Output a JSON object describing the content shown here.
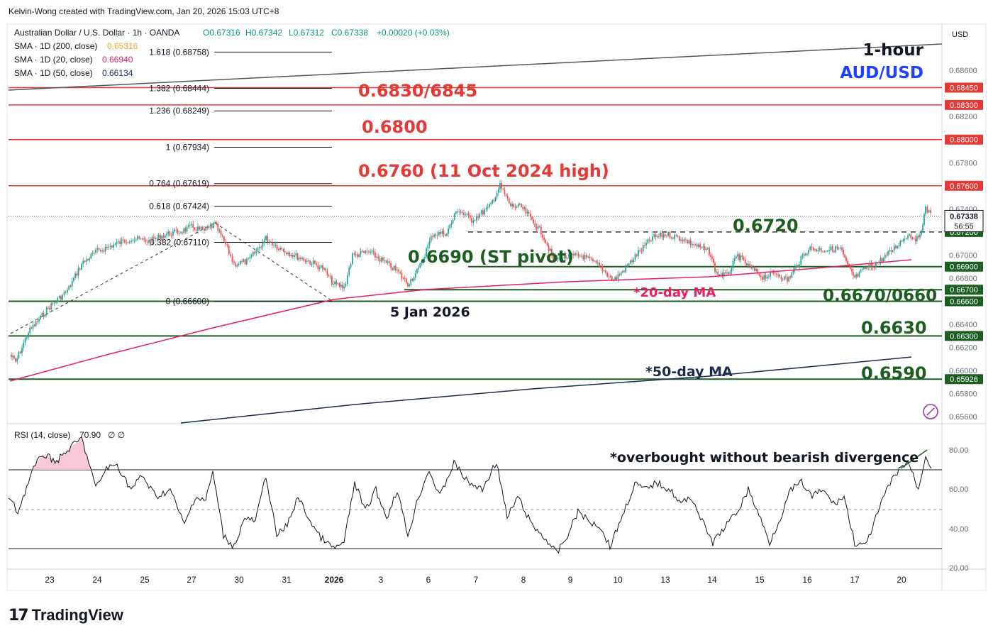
{
  "header": {
    "credit": "Kelvin-Wong created with TradingView.com, Jan 20, 2026 15:03 UTC+8"
  },
  "legend": {
    "symbol": "Australian Dollar / U.S. Dollar · 1h · OANDA",
    "ohlc": {
      "o": "O0.67316",
      "h": "H0.67342",
      "l": "L0.67312",
      "c": "C0.67338",
      "chg": "+0.00020 (+0.03%)"
    },
    "sma200": {
      "label": "SMA · 1D (200, close)",
      "value": "0.65316",
      "color": "#f5a623"
    },
    "sma20": {
      "label": "SMA · 1D (20, close)",
      "value": "0.66940",
      "color": "#e91e63"
    },
    "sma50": {
      "label": "SMA · 1D (50, close)",
      "value": "0.66134",
      "color": "#1a2b4c"
    }
  },
  "price_axis": {
    "currency": "USD",
    "ticks": [
      "0.68600",
      "0.68200",
      "0.67800",
      "0.67400",
      "0.67000",
      "0.66800",
      "0.66400",
      "0.66200",
      "0.66000",
      "0.65800",
      "0.65600"
    ],
    "tags": [
      {
        "label": "0.68450",
        "value": 0.6845,
        "color": "#e53935"
      },
      {
        "label": "0.68300",
        "value": 0.683,
        "color": "#e53935"
      },
      {
        "label": "0.68000",
        "value": 0.68,
        "color": "#e53935"
      },
      {
        "label": "0.67600",
        "value": 0.676,
        "color": "#e53935"
      },
      {
        "label": "0.67200",
        "value": 0.672,
        "color": "#1b5e20"
      },
      {
        "label": "0.66900",
        "value": 0.669,
        "color": "#1b5e20"
      },
      {
        "label": "0.66700",
        "value": 0.667,
        "color": "#1b5e20"
      },
      {
        "label": "0.66600",
        "value": 0.666,
        "color": "#1b5e20"
      },
      {
        "label": "0.66300",
        "value": 0.663,
        "color": "#1b5e20"
      },
      {
        "label": "0.65926",
        "value": 0.65926,
        "color": "#1b5e20"
      }
    ],
    "last": {
      "price": "0.67338",
      "countdown": "56:55",
      "value": 0.67338
    }
  },
  "time_axis": {
    "labels": [
      "23",
      "24",
      "25",
      "27",
      "30",
      "31",
      "2026",
      "3",
      "6",
      "7",
      "8",
      "9",
      "10",
      "13",
      "14",
      "15",
      "16",
      "17",
      "20"
    ]
  },
  "fib": {
    "levels": [
      {
        "label": "1.618 (0.68758)",
        "value": 0.68758
      },
      {
        "label": "1.382 (0.68444)",
        "value": 0.68444
      },
      {
        "label": "1.236 (0.68249)",
        "value": 0.68249
      },
      {
        "label": "1 (0.67934)",
        "value": 0.67934
      },
      {
        "label": "0.764 (0.67619)",
        "value": 0.67619
      },
      {
        "label": "0.618 (0.67424)",
        "value": 0.67424
      },
      {
        "label": "0.382 (0.67110)",
        "value": 0.6711
      },
      {
        "label": "0 (0.66600)",
        "value": 0.666
      }
    ]
  },
  "annotations": {
    "title_line1": "1-hour",
    "title_line2": "AUD/USD",
    "r1": "0.6830/6845",
    "r2": "0.6800",
    "r3": "0.6760 (11 Oct 2024 high)",
    "s_dash": "0.6720",
    "s_pivot": "0.6690 (ST pivot)",
    "ma20": "*20-day MA",
    "s_zone": "0.6670/0660",
    "date_note": "5 Jan 2026",
    "s_6630": "0.6630",
    "ma50": "*50-day MA",
    "s_6590": "0.6590",
    "rsi_note": "*overbought without bearish divergence"
  },
  "rsi": {
    "label": "RSI (14, close)",
    "value": "70.90",
    "extra": "∅ ∅",
    "ticks": [
      "80.00",
      "60.00",
      "40.00",
      "20.00"
    ]
  },
  "branding": {
    "logo_mark": "17",
    "logo_text": "TradingView"
  },
  "chart_data": {
    "type": "line",
    "title": "Australian Dollar / U.S. Dollar · 1h · OANDA",
    "ylim": [
      0.6554,
      0.69
    ],
    "x": [
      "23",
      "24",
      "25",
      "27",
      "30",
      "31",
      "2026",
      "3",
      "6",
      "7",
      "8",
      "9",
      "10",
      "13",
      "14",
      "15",
      "16",
      "17",
      "20",
      "20b"
    ],
    "series": [
      {
        "name": "AUD/USD",
        "values": [
          0.661,
          0.6686,
          0.671,
          0.6722,
          0.6692,
          0.67,
          0.6668,
          0.6692,
          0.6672,
          0.674,
          0.6745,
          0.6698,
          0.6688,
          0.671,
          0.669,
          0.6682,
          0.6698,
          0.6678,
          0.6705,
          0.67338
        ]
      },
      {
        "name": "SMA · 1D (20, close)",
        "values": [
          0.6592,
          0.6605,
          0.6617,
          0.663,
          0.664,
          0.6647,
          0.6655,
          0.666,
          0.6666,
          0.6671,
          0.6674,
          0.6677,
          0.6679,
          0.6681,
          0.6683,
          0.6685,
          0.6688,
          0.669,
          0.6692,
          0.6694
        ]
      },
      {
        "name": "SMA · 1D (50, close)",
        "values": [
          null,
          null,
          null,
          0.6571,
          0.6575,
          0.6579,
          0.6583,
          0.6587,
          0.659,
          0.6593,
          0.6595,
          0.6598,
          0.66,
          0.6602,
          0.6604,
          0.6606,
          0.6608,
          0.661,
          0.6612,
          0.6613
        ]
      },
      {
        "name": "RSI (14, close)",
        "values": [
          48,
          72,
          56,
          74,
          38,
          62,
          30,
          64,
          45,
          70,
          58,
          28,
          50,
          64,
          36,
          42,
          60,
          32,
          68,
          70.9
        ]
      }
    ]
  }
}
